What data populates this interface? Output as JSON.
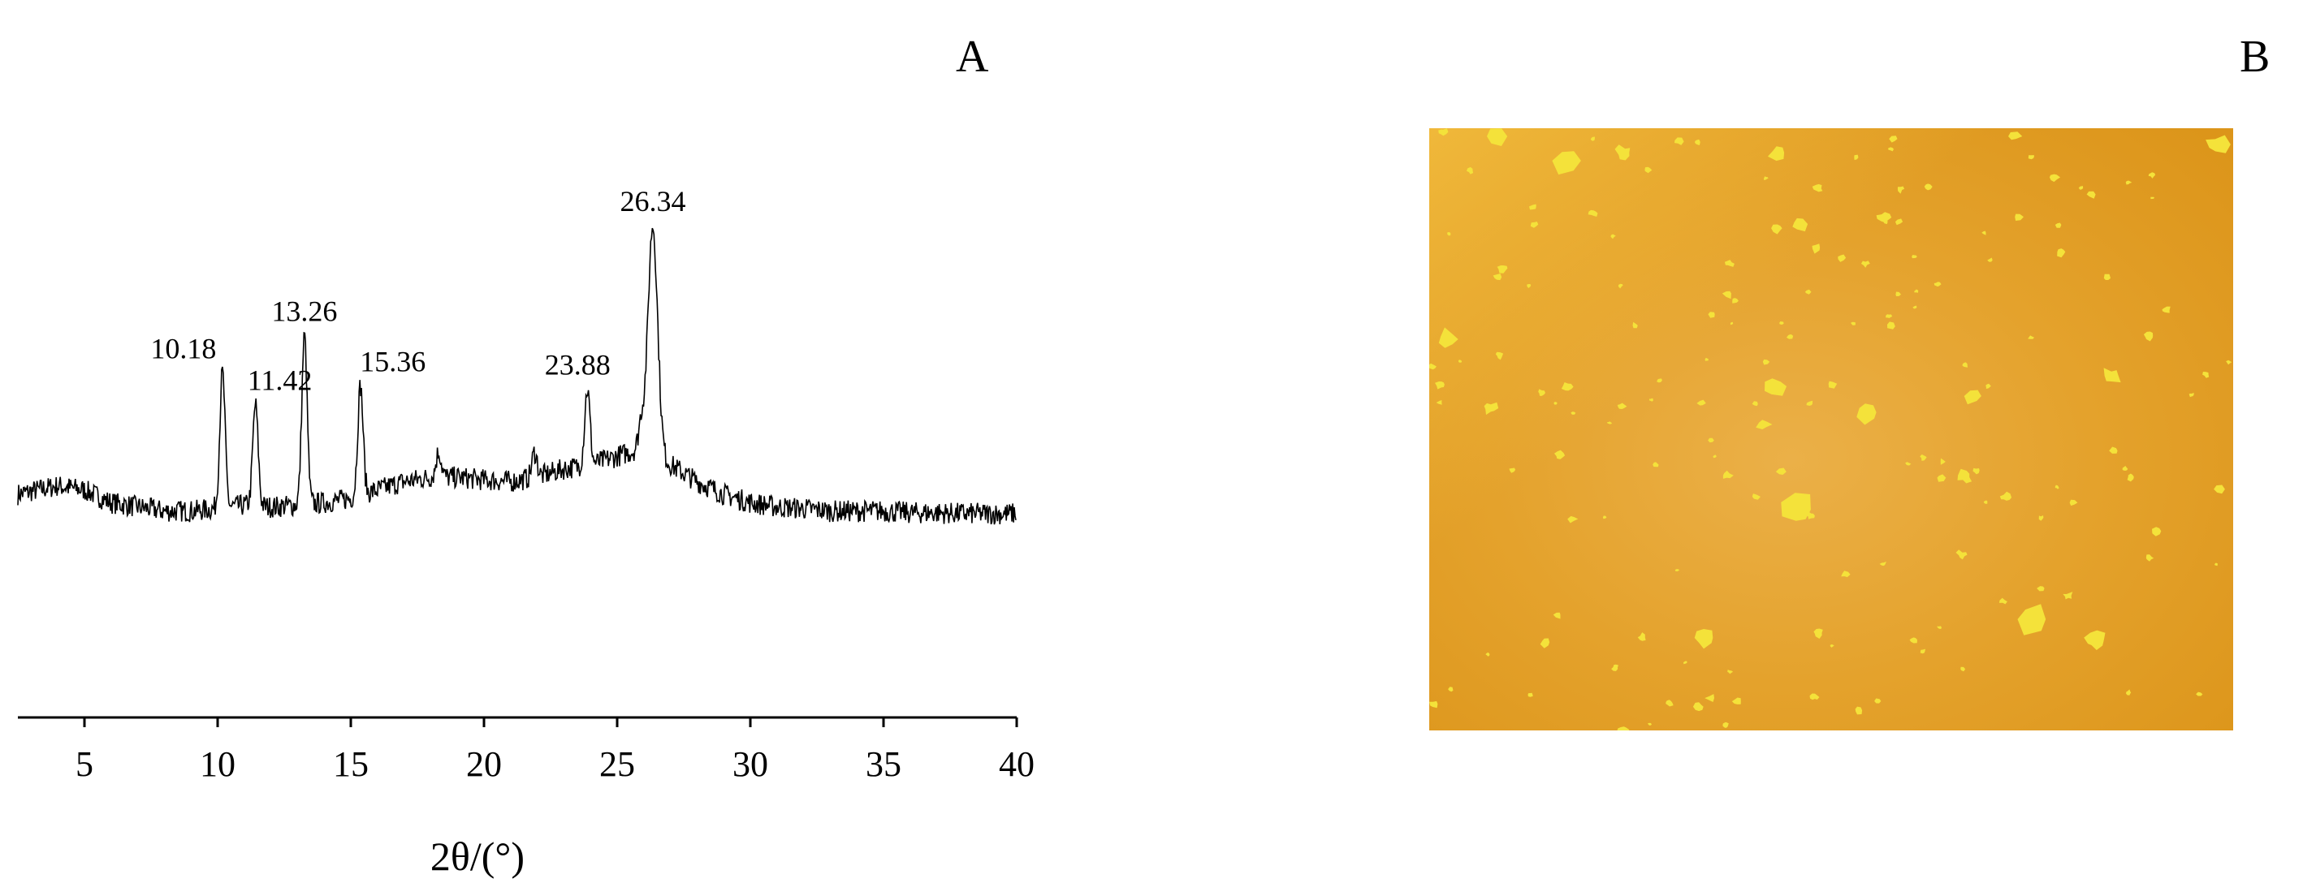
{
  "panels": {
    "a": "A",
    "b": "B"
  },
  "chart_data": {
    "type": "line",
    "xlabel": "2θ/(°)",
    "ylabel": "",
    "xlim": [
      2.5,
      40
    ],
    "xticks": [
      5,
      10,
      15,
      20,
      25,
      30,
      35,
      40
    ],
    "grid": false,
    "baseline": [
      [
        2.5,
        2.5
      ],
      [
        4,
        3.5
      ],
      [
        5,
        3.0
      ],
      [
        6,
        1.5
      ],
      [
        7,
        1.0
      ],
      [
        8,
        0.5
      ],
      [
        9,
        0.5
      ],
      [
        10,
        0.8
      ],
      [
        11,
        1.2
      ],
      [
        12,
        1.0
      ],
      [
        13,
        1.2
      ],
      [
        14,
        1.5
      ],
      [
        15,
        2.0
      ],
      [
        16,
        3.0
      ],
      [
        17,
        4.0
      ],
      [
        18,
        4.5
      ],
      [
        19,
        4.5
      ],
      [
        20,
        4.2
      ],
      [
        21,
        4.0
      ],
      [
        22,
        4.5
      ],
      [
        23,
        5.5
      ],
      [
        24,
        6.0
      ],
      [
        25,
        7.0
      ],
      [
        26,
        8.0
      ],
      [
        27,
        6.0
      ],
      [
        28,
        4.0
      ],
      [
        29,
        2.5
      ],
      [
        30,
        1.5
      ],
      [
        31,
        1.0
      ],
      [
        32,
        0.8
      ],
      [
        33,
        0.5
      ],
      [
        34,
        0.5
      ],
      [
        35,
        0.5
      ],
      [
        36,
        0.3
      ],
      [
        37,
        0.3
      ],
      [
        38,
        0.2
      ],
      [
        39,
        0.2
      ],
      [
        40,
        0.2
      ]
    ],
    "peaks": [
      {
        "x": 10.18,
        "label": "10.18",
        "height": 16
      },
      {
        "x": 11.42,
        "label": "11.42",
        "height": 12
      },
      {
        "x": 13.26,
        "label": "13.26",
        "height": 20
      },
      {
        "x": 15.36,
        "label": "15.36",
        "height": 13
      },
      {
        "x": 18.3,
        "label": "",
        "height": 3
      },
      {
        "x": 21.9,
        "label": "",
        "height": 3
      },
      {
        "x": 23.88,
        "label": "23.88",
        "height": 9
      },
      {
        "x": 25.9,
        "label": "",
        "height": 3
      },
      {
        "x": 26.34,
        "label": "26.34",
        "height": 27
      }
    ],
    "noise": 1.3
  },
  "micrograph": {
    "background": "#E09A1C",
    "highlight": "#F0BE46",
    "particle": "#F4E23A"
  }
}
